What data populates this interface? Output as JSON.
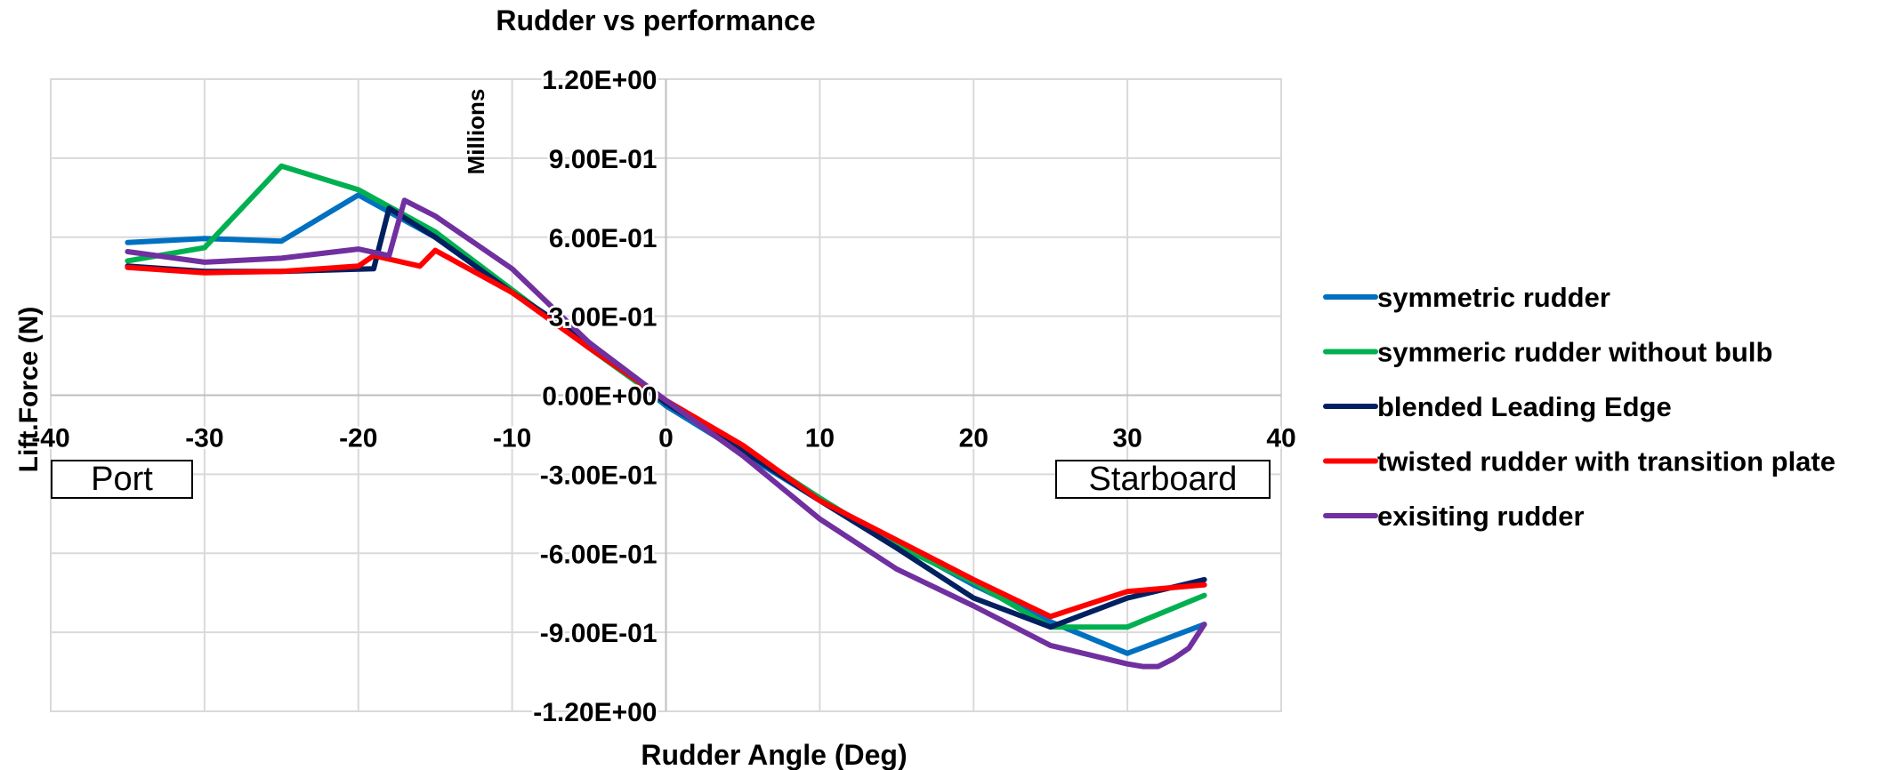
{
  "chart_data": {
    "type": "line",
    "title": "Rudder vs performance",
    "xlabel": "Rudder Angle (Deg)",
    "ylabel": "Lift.Force  (N)",
    "y_units_label": "Millions",
    "xlim": [
      -40,
      40
    ],
    "ylim": [
      -1.2,
      1.2
    ],
    "x_ticks": [
      -40,
      -30,
      -20,
      -10,
      0,
      10,
      20,
      30,
      40
    ],
    "x_tick_labels": [
      "-40",
      "-30",
      "-20",
      "-10",
      "0",
      "10",
      "20",
      "30",
      "40"
    ],
    "y_ticks": [
      1.2,
      0.9,
      0.6,
      0.3,
      0.0,
      -0.3,
      -0.6,
      -0.9,
      -1.2
    ],
    "y_tick_labels": [
      "1.20E+00",
      "9.00E-01",
      "6.00E-01",
      "3.00E-01",
      "0.00E+00",
      "-3.00E-01",
      "-6.00E-01",
      "-9.00E-01",
      "-1.20E+00"
    ],
    "grid": true,
    "legend_position": "right",
    "annotations": {
      "port": "Port",
      "starboard": "Starboard"
    },
    "series": [
      {
        "name": "symmetric rudder",
        "color": "#0070C0",
        "x": [
          -35,
          -30,
          -25,
          -20,
          -15,
          -10,
          -5,
          0,
          5,
          10,
          15,
          20,
          25,
          30,
          35
        ],
        "y": [
          0.58,
          0.595,
          0.585,
          0.76,
          0.6,
          0.39,
          0.2,
          -0.04,
          -0.22,
          -0.4,
          -0.56,
          -0.72,
          -0.86,
          -0.98,
          -0.87
        ]
      },
      {
        "name": "symmeric rudder without bulb",
        "color": "#00B050",
        "x": [
          -35,
          -30,
          -25,
          -20,
          -15,
          -10,
          -5,
          0,
          5,
          10,
          15,
          20,
          25,
          30,
          35
        ],
        "y": [
          0.51,
          0.56,
          0.87,
          0.78,
          0.62,
          0.4,
          0.18,
          -0.03,
          -0.2,
          -0.39,
          -0.57,
          -0.71,
          -0.88,
          -0.88,
          -0.76
        ]
      },
      {
        "name": "blended Leading Edge",
        "color": "#002060",
        "x": [
          -35,
          -30,
          -25,
          -19,
          -18,
          -15,
          -10,
          -5,
          0,
          5,
          10,
          15,
          20,
          25,
          30,
          35
        ],
        "y": [
          0.49,
          0.47,
          0.47,
          0.48,
          0.71,
          0.6,
          0.39,
          0.2,
          -0.03,
          -0.21,
          -0.4,
          -0.58,
          -0.77,
          -0.88,
          -0.77,
          -0.7
        ]
      },
      {
        "name": "twisted rudder with transition plate",
        "color": "#FF0000",
        "x": [
          -35,
          -30,
          -25,
          -20,
          -19,
          -16,
          -15,
          -10,
          -5,
          0,
          5,
          10,
          15,
          20,
          25,
          30,
          35
        ],
        "y": [
          0.485,
          0.465,
          0.47,
          0.49,
          0.53,
          0.49,
          0.55,
          0.39,
          0.18,
          -0.02,
          -0.19,
          -0.4,
          -0.55,
          -0.7,
          -0.84,
          -0.745,
          -0.72
        ]
      },
      {
        "name": "exisiting rudder",
        "color": "#7030A0",
        "x": [
          -35,
          -30,
          -25,
          -20,
          -18,
          -17,
          -15,
          -10,
          -5,
          0,
          5,
          10,
          15,
          20,
          25,
          30,
          31,
          32,
          33,
          34,
          35
        ],
        "y": [
          0.545,
          0.505,
          0.52,
          0.555,
          0.53,
          0.74,
          0.68,
          0.48,
          0.2,
          -0.02,
          -0.23,
          -0.47,
          -0.66,
          -0.8,
          -0.95,
          -1.02,
          -1.03,
          -1.03,
          -1.0,
          -0.96,
          -0.87
        ]
      }
    ]
  }
}
